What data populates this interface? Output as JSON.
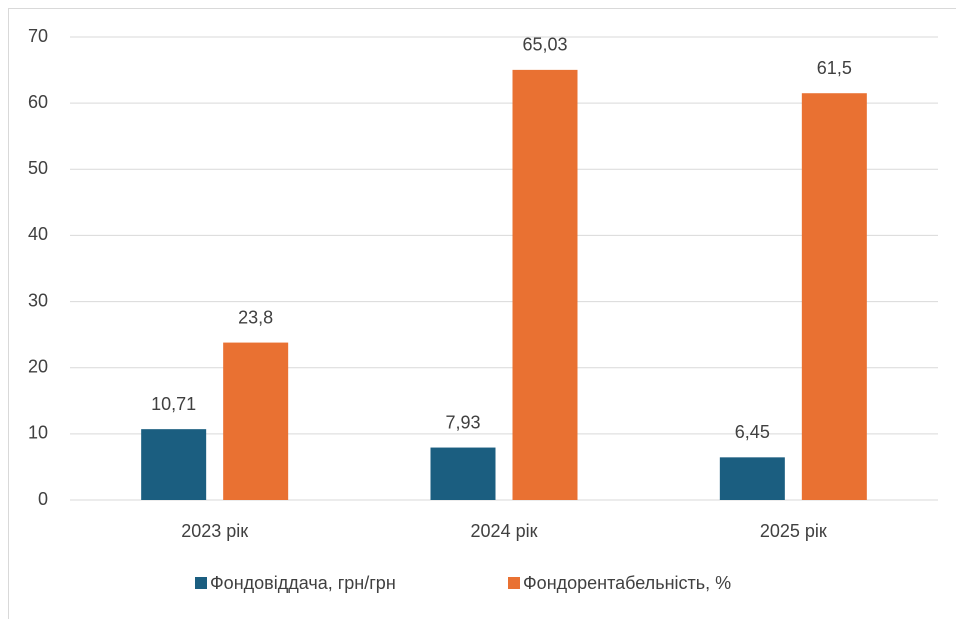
{
  "chart_data": {
    "type": "bar",
    "categories": [
      "2023 рік",
      "2024 рік",
      "2025 рік"
    ],
    "series": [
      {
        "name": "Фондовіддача, грн/грн",
        "color": "#1b5e80",
        "values": [
          10.71,
          7.93,
          6.45
        ],
        "value_labels": [
          "10,71",
          "7,93",
          "6,45"
        ]
      },
      {
        "name": "Фондорентабельність, %",
        "color": "#e97132",
        "values": [
          23.8,
          65.03,
          61.5
        ],
        "value_labels": [
          "23,8",
          "65,03",
          "61,5"
        ]
      }
    ],
    "ylim": [
      0,
      70
    ],
    "yticks": [
      0,
      10,
      20,
      30,
      40,
      50,
      60,
      70
    ],
    "grid": true,
    "legend": "bottom"
  }
}
